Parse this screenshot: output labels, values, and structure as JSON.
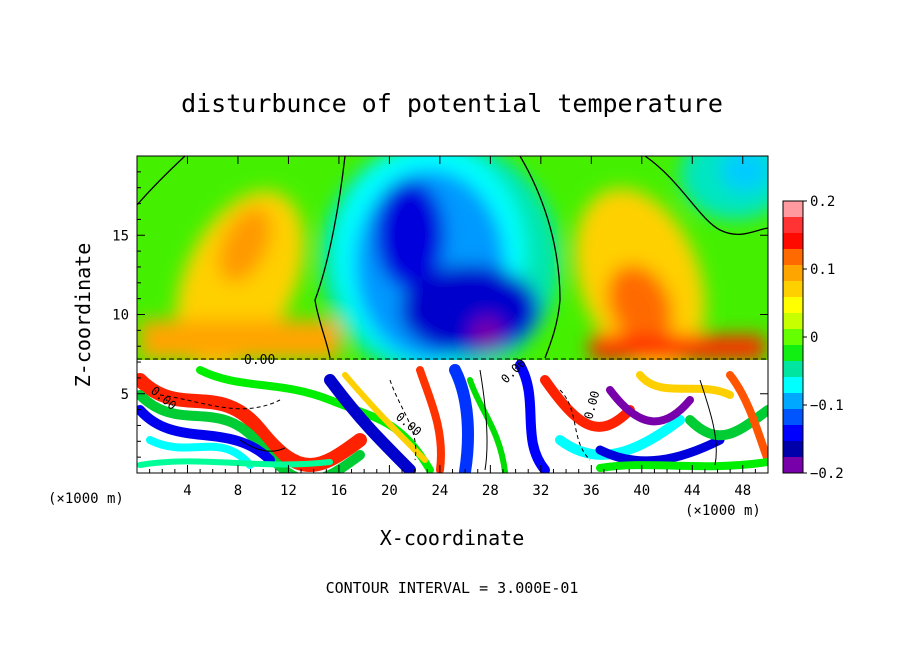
{
  "chart_data": {
    "type": "heatmap",
    "title": "disturbunce of potential temperature",
    "xlabel": "X-coordinate",
    "ylabel": "Z-coordinate",
    "x_unit_left": "(×1000 m)",
    "x_unit_right": "(×1000 m)",
    "xlim": [
      0,
      50
    ],
    "ylim": [
      0,
      20
    ],
    "x_ticks": [
      4,
      8,
      12,
      16,
      20,
      24,
      28,
      32,
      36,
      40,
      44,
      48
    ],
    "y_ticks": [
      5,
      10,
      15
    ],
    "colorbar": {
      "range": [
        -0.2,
        0.2
      ],
      "tick_values": [
        0.2,
        0.1,
        0,
        -0.1,
        -0.2
      ],
      "tick_labels": [
        "0.2",
        "0.1",
        "0",
        "−0.1",
        "−0.2"
      ],
      "colors": [
        "#ff9aa0",
        "#ff3333",
        "#ff0a00",
        "#ff6a00",
        "#ffa500",
        "#ffd000",
        "#ffff00",
        "#c8ff00",
        "#66ff00",
        "#11ee11",
        "#00e6a0",
        "#00ffff",
        "#00a8ff",
        "#0055ff",
        "#0000ff",
        "#0000aa",
        "#7700aa"
      ]
    },
    "contour_label": "0.00",
    "footer": "CONTOUR INTERVAL = 3.000E-01"
  }
}
